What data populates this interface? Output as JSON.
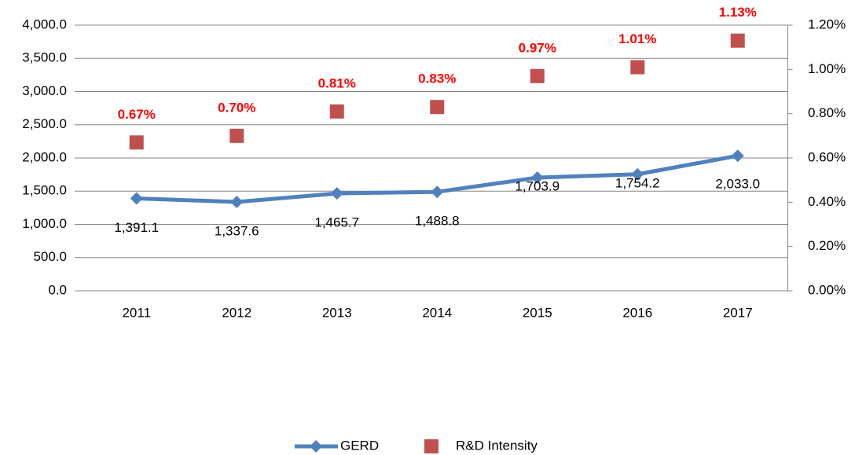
{
  "chart_data": {
    "type": "line",
    "categories": [
      "2011",
      "2012",
      "2013",
      "2014",
      "2015",
      "2016",
      "2017"
    ],
    "series": [
      {
        "name": "GERD",
        "color": "#4f81bd",
        "values": [
          1391.1,
          1337.6,
          1465.7,
          1488.8,
          1703.9,
          1754.2,
          2033.0
        ],
        "value_labels": [
          "1,391.1",
          "1,337.6",
          "1,465.7",
          "1,488.8",
          "1,703.9",
          "1,754.2",
          "2,033.0"
        ]
      },
      {
        "name": "R&D Intensity",
        "color": "#c0504d",
        "axis": "y2",
        "values": [
          0.67,
          0.7,
          0.81,
          0.83,
          0.97,
          1.01,
          1.13
        ],
        "value_labels": [
          "0.67%",
          "0.70%",
          "0.81%",
          "0.83%",
          "0.97%",
          "1.01%",
          "1.13%"
        ]
      }
    ],
    "ylim": [
      0,
      4000
    ],
    "yticks": [
      {
        "value": 0,
        "label": "0.0"
      },
      {
        "value": 500,
        "label": "500.0"
      },
      {
        "value": 1000,
        "label": "1,000.0"
      },
      {
        "value": 1500,
        "label": "1,500.0"
      },
      {
        "value": 2000,
        "label": "2,000.0"
      },
      {
        "value": 2500,
        "label": "2,500.0"
      },
      {
        "value": 3000,
        "label": "3,000.0"
      },
      {
        "value": 3500,
        "label": "3,500.0"
      },
      {
        "value": 4000,
        "label": "4,000.0"
      }
    ],
    "y2lim": [
      0,
      1.2
    ],
    "y2ticks": [
      {
        "value": 0,
        "label": "0.00%"
      },
      {
        "value": 0.2,
        "label": "0.20%"
      },
      {
        "value": 0.4,
        "label": "0.40%"
      },
      {
        "value": 0.6,
        "label": "0.60%"
      },
      {
        "value": 0.8,
        "label": "0.80%"
      },
      {
        "value": 1.0,
        "label": "1.00%"
      },
      {
        "value": 1.2,
        "label": "1.20%"
      }
    ],
    "grid": true,
    "legend": "bottom"
  }
}
